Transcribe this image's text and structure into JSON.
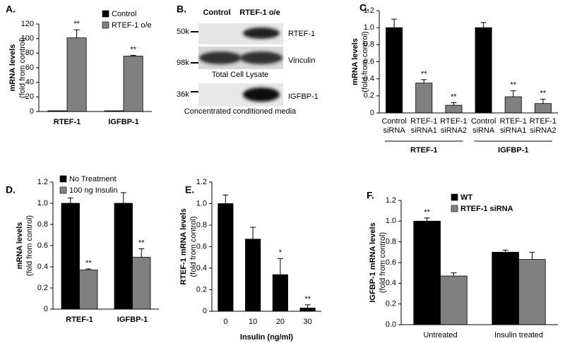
{
  "chart_data": [
    {
      "type": "bar",
      "panel": "A.",
      "ylabel": "mRNA levels",
      "ylabel_sub": "(fold from control)",
      "categories": [
        "RTEF-1",
        "IGFBP-1"
      ],
      "series": [
        {
          "name": "Control",
          "color": "#000000",
          "values": [
            1,
            1
          ]
        },
        {
          "name": "RTEF-1 o/e",
          "color": "#808080",
          "values": [
            101,
            76
          ],
          "errors": [
            11,
            1
          ],
          "sig": [
            "**",
            "**"
          ]
        }
      ],
      "ylim": [
        0,
        120
      ],
      "yticks": [
        0,
        20,
        40,
        60,
        80,
        100,
        120
      ],
      "legend": "upper right"
    },
    {
      "type": "bar",
      "panel": "C.",
      "ylabel": "mRNA  levels",
      "ylabel_sub": "(fold from control)",
      "categories": [
        [
          "Control",
          "siRNA"
        ],
        [
          "RTEF-1",
          "siRNA1"
        ],
        [
          "RTEF-1",
          "siRNA2"
        ],
        [
          "Control",
          "siRNA"
        ],
        [
          "RTEF-1",
          "siRNA1"
        ],
        [
          "RTEF-1",
          "siRNA2"
        ]
      ],
      "groups": [
        "RTEF-1",
        "IGFBP-1"
      ],
      "series": [
        {
          "colors": [
            "#000000",
            "#808080",
            "#808080",
            "#000000",
            "#808080",
            "#808080"
          ],
          "values": [
            1.0,
            0.35,
            0.09,
            1.0,
            0.19,
            0.11
          ],
          "errors": [
            0.1,
            0.04,
            0.03,
            0.06,
            0.07,
            0.05
          ],
          "sig": [
            null,
            "**",
            "**",
            null,
            "**",
            "**"
          ]
        }
      ],
      "ylim": [
        0,
        1.2
      ],
      "yticks": [
        0,
        0.2,
        0.4,
        0.6,
        0.8,
        {
          "value": 1,
          "label": "1.0"
        },
        1.2
      ]
    },
    {
      "type": "bar",
      "panel": "D.",
      "ylabel": "mRNA  levels",
      "ylabel_sub": "(fold from control)",
      "categories": [
        "RTEF-1",
        "IGFBP-1"
      ],
      "series": [
        {
          "name": "No Treatment",
          "color": "#000000",
          "values": [
            1.0,
            1.0
          ],
          "errors": [
            0.05,
            0.1
          ]
        },
        {
          "name": "100 ng Insulin",
          "color": "#808080",
          "values": [
            0.37,
            0.49
          ],
          "errors": [
            0.01,
            0.08
          ],
          "sig": [
            "**",
            "**"
          ]
        }
      ],
      "ylim": [
        0,
        1.2
      ],
      "yticks": [
        0,
        0.2,
        0.4,
        0.6,
        0.8,
        {
          "value": 1,
          "label": "1.0"
        },
        1.2
      ],
      "legend": "upper left"
    },
    {
      "type": "bar",
      "panel": "E.",
      "ylabel": "RTEF-1 mRNA levels",
      "ylabel_sub": "(fold from control)",
      "xlabel": "Insulin (ng/ml)",
      "categories": [
        "0",
        "10",
        "20",
        "30"
      ],
      "series": [
        {
          "color": "#000000",
          "values": [
            1.0,
            0.67,
            0.34,
            0.03
          ],
          "errors": [
            0.08,
            0.11,
            0.15,
            0.03
          ],
          "sig": [
            null,
            null,
            "*",
            "**"
          ]
        }
      ],
      "ylim": [
        0,
        1.2
      ],
      "yticks": [
        0,
        0.2,
        0.4,
        0.6,
        0.8,
        {
          "value": 1,
          "label": "1.0"
        },
        1.2
      ]
    },
    {
      "type": "bar",
      "panel": "F.",
      "ylabel": "IGFBP-1 mRNA  levels",
      "ylabel_sub": "(fold from control)",
      "categories": [
        "Untreated",
        "Insulin treated"
      ],
      "series": [
        {
          "name": "WT",
          "color": "#000000",
          "values": [
            1.0,
            0.7
          ],
          "errors": [
            0.03,
            0.02
          ],
          "sig": [
            "**",
            null
          ]
        },
        {
          "name": "RTEF-1 siRNA",
          "color": "#808080",
          "values": [
            0.47,
            0.63
          ],
          "errors": [
            0.03,
            0.07
          ]
        }
      ],
      "ylim": [
        0,
        1.2
      ],
      "yticks": [
        {
          "value": 0,
          "label": "0.0"
        },
        0.2,
        0.4,
        0.6,
        0.8,
        {
          "value": 1,
          "label": "1.0"
        },
        1.2
      ],
      "legend": "upper center"
    }
  ],
  "blot": {
    "panel": "B.",
    "lanes": [
      "Control",
      "RTEF-1 o/e"
    ],
    "rows": [
      {
        "marker": "50k",
        "label": "RTEF-1"
      },
      {
        "marker": "98k",
        "label": "Vinculin"
      },
      {
        "marker": "36k",
        "label": "IGFBP-1"
      }
    ],
    "captions": [
      "Total Cell Lysate",
      "Concentrated conditioned media"
    ]
  }
}
